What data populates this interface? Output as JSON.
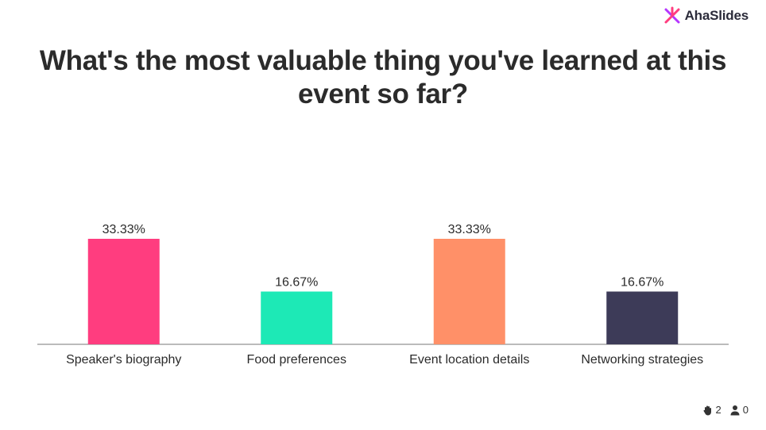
{
  "brand": {
    "name": "AhaSlides"
  },
  "question": "What's the most valuable thing you've learned at this event so far?",
  "chart_data": {
    "type": "bar",
    "categories": [
      "Speaker's biography",
      "Food preferences",
      "Event location details",
      "Networking strategies"
    ],
    "values": [
      33.33,
      16.67,
      33.33,
      16.67
    ],
    "value_labels": [
      "33.33%",
      "16.67%",
      "33.33%",
      "16.67%"
    ],
    "colors": [
      "#ff3d7f",
      "#1de9b6",
      "#ff9068",
      "#3d3b58"
    ],
    "ylim": [
      0,
      33.33
    ],
    "grid": false
  },
  "footer": {
    "reactions": "2",
    "participants": "0"
  },
  "icons": {
    "logo": "ahaslides-logo-icon",
    "reactions": "raised-hand-icon",
    "participants": "person-icon"
  }
}
